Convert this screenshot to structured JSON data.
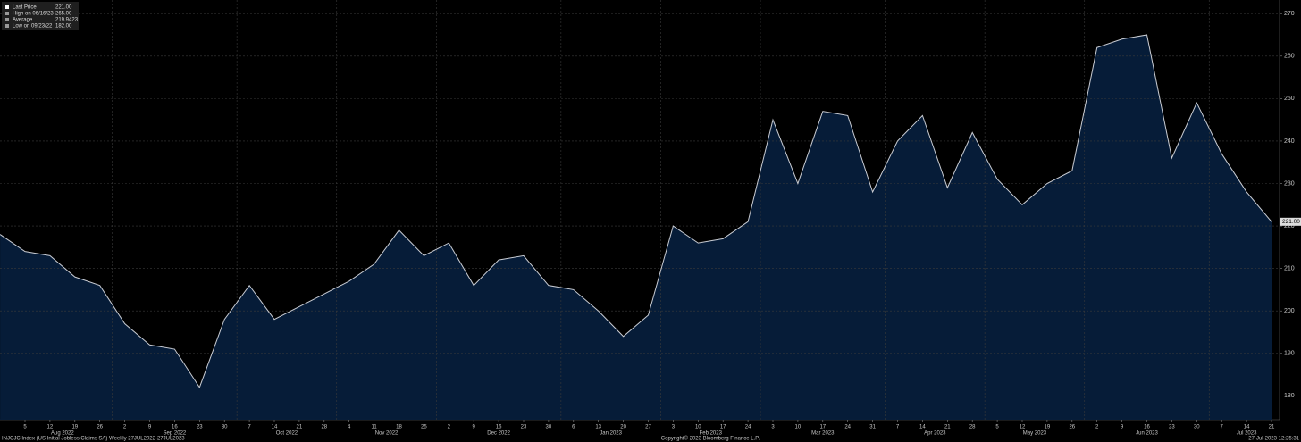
{
  "chart_data": {
    "type": "area",
    "title": "INJCJC Index (US Initial Jobless Claims SA)  Weekly 27JUL2022-27JUL2023",
    "copyright": "Copyright© 2023 Bloomberg Finance L.P.",
    "timestamp": "27-Jul-2023 12:25:31",
    "legend": [
      {
        "name": "Last Price",
        "value_label": "221.00"
      },
      {
        "name": "High on 06/16/23",
        "value_label": "265.00"
      },
      {
        "name": "Average",
        "value_label": "219.9423"
      },
      {
        "name": "Low on 09/23/22",
        "value_label": "182.00"
      }
    ],
    "last_price_label": "221.00",
    "months": [
      "Aug 2022",
      "Sep 2022",
      "Oct 2022",
      "Nov 2022",
      "Dec 2022",
      "Jan 2023",
      "Feb 2023",
      "Mar 2023",
      "Apr 2023",
      "May 2023",
      "Jun 2023",
      "Jul 2023"
    ],
    "categories": [
      null,
      "5",
      "12",
      "19",
      "26",
      "2",
      "9",
      "16",
      "23",
      "30",
      "7",
      "14",
      "21",
      "28",
      "4",
      "11",
      "18",
      "25",
      "2",
      "9",
      "16",
      "23",
      "30",
      "6",
      "13",
      "20",
      "27",
      "3",
      "10",
      "17",
      "24",
      "3",
      "10",
      "17",
      "24",
      "31",
      "7",
      "14",
      "21",
      "28",
      "5",
      "12",
      "19",
      "26",
      "2",
      "9",
      "16",
      "23",
      "30",
      "7",
      "14",
      "21"
    ],
    "values": [
      218,
      214,
      213,
      208,
      206,
      197,
      192,
      191,
      182,
      198,
      206,
      198,
      201,
      204,
      207,
      211,
      219,
      213,
      216,
      206,
      212,
      213,
      206,
      205,
      200,
      194,
      199,
      220,
      216,
      217,
      221,
      245,
      230,
      247,
      246,
      228,
      240,
      246,
      229,
      242,
      231,
      225,
      230,
      233,
      262,
      264,
      265,
      236,
      249,
      237,
      228,
      221
    ],
    "color": "#061d3b",
    "line_color": "#c9ccd3",
    "ylim": [
      174.4,
      273.2
    ],
    "yticks": [
      180,
      190,
      200,
      210,
      220,
      230,
      240,
      250,
      260,
      270
    ],
    "grid": true
  }
}
